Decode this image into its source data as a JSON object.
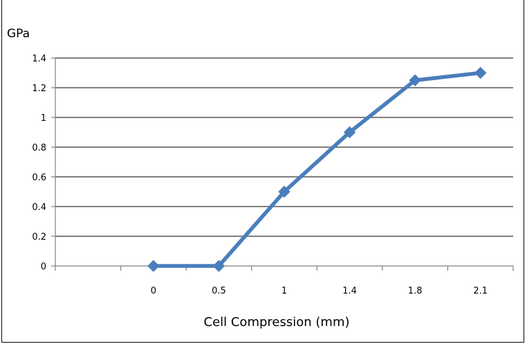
{
  "chart_data": {
    "type": "line",
    "title": "",
    "ylabel": "GPa",
    "xlabel": "Cell Compression (mm)",
    "categories": [
      "",
      "0",
      "0.5",
      "1",
      "1.4",
      "1.8",
      "2.1"
    ],
    "series": [
      {
        "values": [
          null,
          0,
          0,
          0.5,
          0.9,
          1.25,
          1.3
        ],
        "color": "#4a7ebb",
        "marker": "diamond"
      }
    ],
    "ylim": [
      0,
      1.4
    ],
    "yticks": [
      "0",
      "0.2",
      "0.4",
      "0.6",
      "0.8",
      "1",
      "1.2",
      "1.4"
    ],
    "grid": true,
    "legend": "none"
  }
}
